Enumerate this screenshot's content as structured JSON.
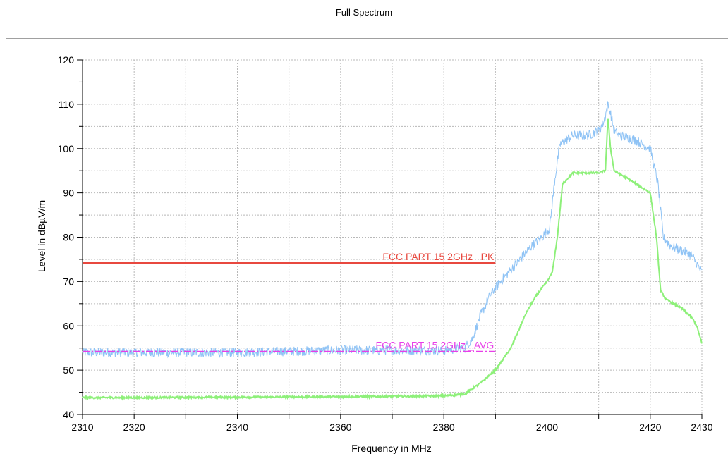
{
  "chart_data": {
    "type": "line",
    "title": "Full Spectrum",
    "xlabel": "Frequency in MHz",
    "ylabel": "Level in dBµV/m",
    "xlim": [
      2310,
      2430
    ],
    "ylim": [
      40,
      120
    ],
    "x_ticks": [
      2310,
      2320,
      2340,
      2360,
      2380,
      2400,
      2420,
      2430
    ],
    "y_ticks": [
      40,
      50,
      60,
      70,
      80,
      90,
      100,
      110,
      120
    ],
    "grid": true,
    "series": [
      {
        "color": "#8fc3f5",
        "x": [
          2310,
          2320,
          2340,
          2360,
          2380,
          2384,
          2385.5,
          2387,
          2389,
          2391,
          2394,
          2397,
          2399,
          2400.5,
          2401.5,
          2402.5,
          2405,
          2408,
          2410,
          2411,
          2411.8,
          2412.3,
          2413,
          2414,
          2417,
          2420,
          2421.5,
          2422.5,
          2424,
          2426,
          2428,
          2430
        ],
        "y": [
          54,
          54,
          54,
          54.5,
          54.5,
          55,
          57,
          62,
          67,
          70,
          74,
          78,
          80,
          82,
          93,
          101,
          103,
          103,
          104,
          106,
          110,
          108,
          104,
          103,
          102,
          100,
          92,
          80,
          78,
          77,
          76,
          72
        ],
        "noise": 1.1
      },
      {
        "color": "#8ef07a",
        "x": [
          2310,
          2320,
          2340,
          2360,
          2380,
          2384,
          2387,
          2390,
          2393,
          2396,
          2398,
          2400,
          2401,
          2402,
          2403,
          2405,
          2410,
          2411.3,
          2411.8,
          2412.3,
          2413,
          2416,
          2420,
          2421.2,
          2422,
          2423,
          2426,
          2428,
          2429,
          2430
        ],
        "y": [
          43.8,
          43.8,
          43.9,
          44,
          44.2,
          44.6,
          47,
          50,
          55,
          63,
          67,
          70,
          72,
          80,
          92,
          94.5,
          94.5,
          95,
          107,
          100,
          95,
          93,
          90,
          80,
          68,
          66,
          64,
          62,
          60,
          56
        ],
        "noise": 0.2
      }
    ],
    "limit_lines": [
      {
        "label": "FCC PART 15 2GHz _PK",
        "value": 74.2,
        "x_range": [
          2310,
          2390
        ],
        "color": "#e8483f",
        "style": "solid"
      },
      {
        "label": "FCC PART 15 2GHz _AVG",
        "value": 54.2,
        "x_range": [
          2310,
          2390
        ],
        "color": "#e83fe8",
        "style": "dashdot"
      }
    ]
  }
}
